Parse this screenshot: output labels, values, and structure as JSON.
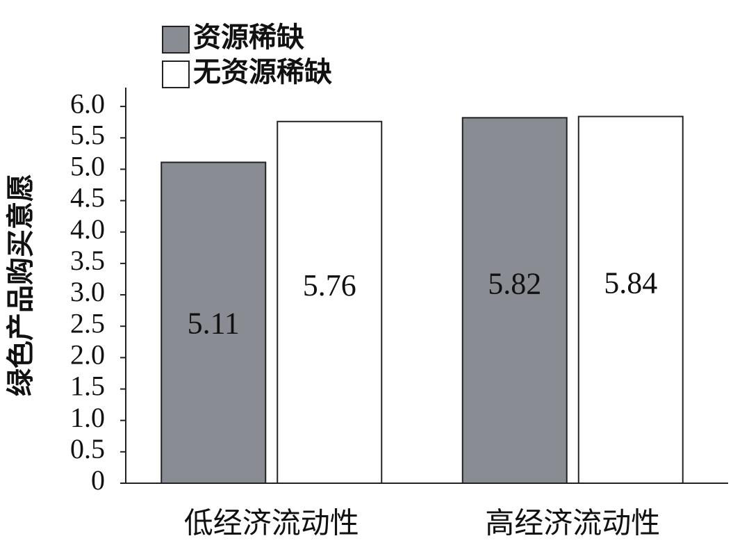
{
  "chart_data": {
    "type": "bar",
    "y_label": "绿色产品购买意愿",
    "categories": [
      "低经济流动性",
      "高经济流动性"
    ],
    "series": [
      {
        "name": "资源稀缺",
        "color": "#8a8c94",
        "values": [
          5.11,
          5.82
        ]
      },
      {
        "name": "无资源稀缺",
        "color": "#ffffff",
        "values": [
          5.76,
          5.84
        ]
      }
    ],
    "ylim": [
      0,
      6.3
    ],
    "yticks": [
      0,
      0.5,
      {
        "value": 1,
        "label": "1.0"
      },
      1.5,
      {
        "value": 2,
        "label": "2.0"
      },
      2.5,
      {
        "value": 3,
        "label": "3.0"
      },
      3.5,
      {
        "value": 4,
        "label": "4.0"
      },
      4.5,
      {
        "value": 5,
        "label": "5.0"
      },
      5.5,
      {
        "value": 6,
        "label": "6.0"
      }
    ],
    "legend": "top-left"
  }
}
